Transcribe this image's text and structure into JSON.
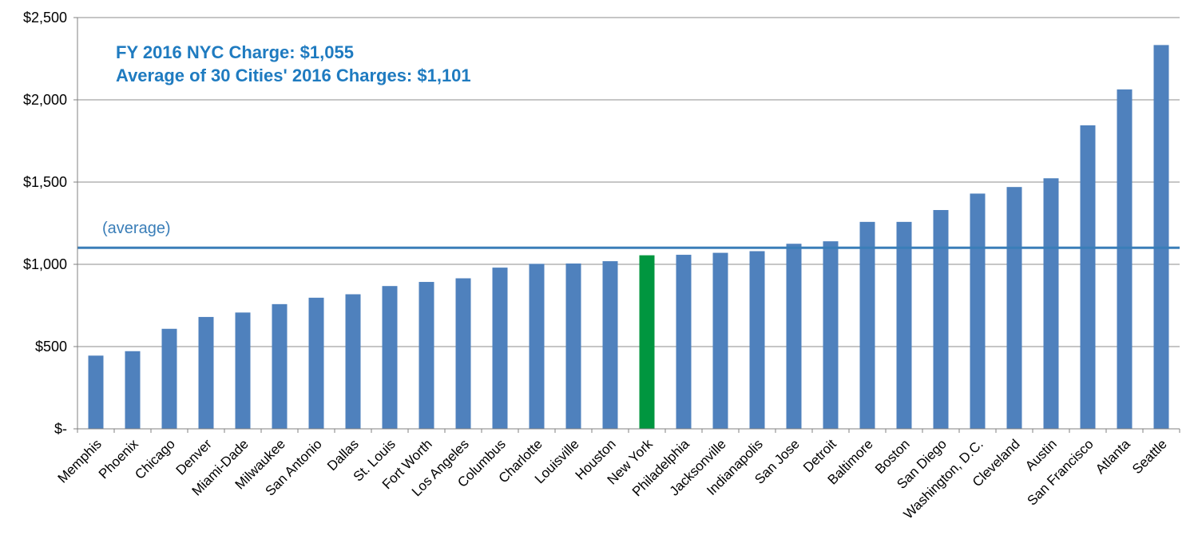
{
  "chart_data": {
    "type": "bar",
    "title": "",
    "xlabel": "",
    "ylabel": "",
    "ylim": [
      0,
      2500
    ],
    "y_ticks": [
      {
        "value": 0,
        "label": "$-"
      },
      {
        "value": 500,
        "label": "$500"
      },
      {
        "value": 1000,
        "label": "$1,000"
      },
      {
        "value": 1500,
        "label": "$1,500"
      },
      {
        "value": 2000,
        "label": "$2,000"
      },
      {
        "value": 2500,
        "label": "$2,500"
      }
    ],
    "grid": true,
    "categories": [
      "Memphis",
      "Phoenix",
      "Chicago",
      "Denver",
      "Miami-Dade",
      "Milwaukee",
      "San Antonio",
      "Dallas",
      "St. Louis",
      "Fort Worth",
      "Los Angeles",
      "Columbus",
      "Charlotte",
      "Louisville",
      "Houston",
      "New York",
      "Philadelphia",
      "Jacksonville",
      "Indianapolis",
      "San Jose",
      "Detroit",
      "Baltimore",
      "Boston",
      "San Diego",
      "Washington, D.C.",
      "Cleveland",
      "Austin",
      "San Francisco",
      "Atlanta",
      "Seattle"
    ],
    "values": [
      445,
      472,
      608,
      680,
      707,
      758,
      797,
      818,
      868,
      893,
      915,
      980,
      1003,
      1005,
      1019,
      1055,
      1058,
      1070,
      1080,
      1125,
      1140,
      1258,
      1258,
      1330,
      1430,
      1470,
      1523,
      1845,
      2063,
      2333
    ],
    "highlight_category": "New York",
    "average_line": {
      "value": 1101,
      "label": "(average)"
    },
    "annotations": [
      "FY 2016 NYC Charge: $1,055",
      "Average of 30 Cities' 2016 Charges: $1,101"
    ],
    "colors": {
      "bar": "#4F81BD",
      "highlight": "#00963F",
      "average_line": "#3A7EB8",
      "annotation_text": "#1F7BC0",
      "gridline": "#8C8C8C",
      "axis": "#808080"
    }
  }
}
